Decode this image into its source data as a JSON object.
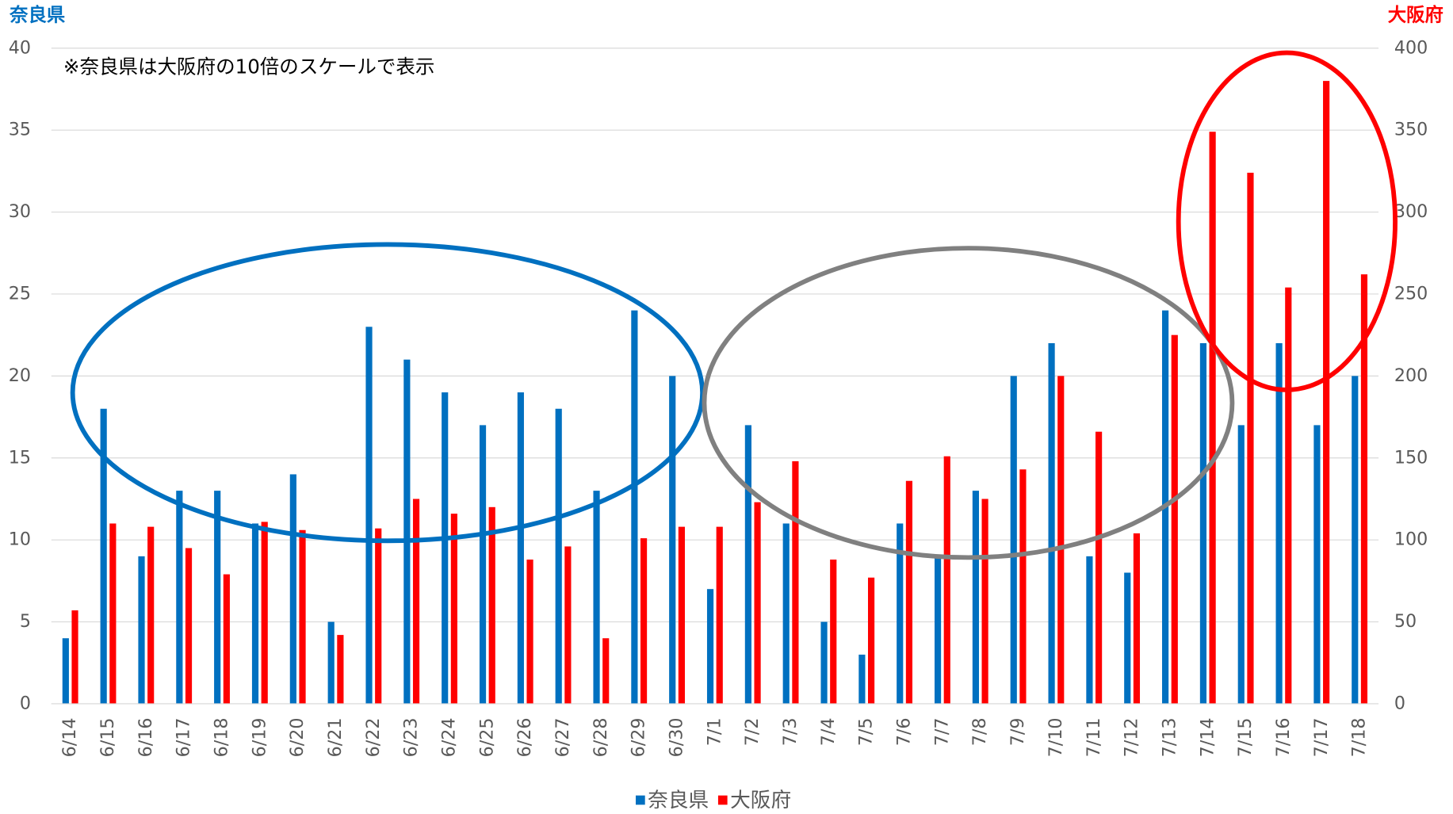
{
  "chart_data": {
    "type": "bar",
    "y_title": "奈良県",
    "y2_title": "大阪府",
    "annotation": "※奈良県は大阪府の10倍のスケールで表示",
    "categories": [
      "6/14",
      "6/15",
      "6/16",
      "6/17",
      "6/18",
      "6/19",
      "6/20",
      "6/21",
      "6/22",
      "6/23",
      "6/24",
      "6/25",
      "6/26",
      "6/27",
      "6/28",
      "6/29",
      "6/30",
      "7/1",
      "7/2",
      "7/3",
      "7/4",
      "7/5",
      "7/6",
      "7/7",
      "7/8",
      "7/9",
      "7/10",
      "7/11",
      "7/12",
      "7/13",
      "7/14",
      "7/15",
      "7/16",
      "7/17",
      "7/18"
    ],
    "series": [
      {
        "name": "奈良県",
        "color": "#0070c0",
        "values": [
          4,
          18,
          9,
          13,
          13,
          11,
          14,
          5,
          23,
          21,
          19,
          17,
          19,
          18,
          13,
          24,
          20,
          7,
          17,
          11,
          5,
          3,
          11,
          9,
          13,
          20,
          22,
          9,
          8,
          24,
          22,
          17,
          22,
          17,
          20
        ]
      },
      {
        "name": "大阪府",
        "color": "#ff0000",
        "axis": "y2",
        "values": [
          57,
          110,
          108,
          95,
          79,
          111,
          106,
          42,
          107,
          125,
          116,
          120,
          88,
          96,
          40,
          101,
          108,
          108,
          123,
          148,
          88,
          77,
          136,
          151,
          125,
          143,
          200,
          166,
          104,
          225,
          349,
          324,
          254,
          380,
          262
        ]
      }
    ],
    "ylim": [
      0,
      40
    ],
    "yticks": [
      0,
      5,
      10,
      15,
      20,
      25,
      30,
      35,
      40
    ],
    "y2lim": [
      0,
      400
    ],
    "y2ticks": [
      0,
      50,
      100,
      150,
      200,
      250,
      300,
      350,
      400
    ],
    "grid": true,
    "legend": "bottom"
  }
}
